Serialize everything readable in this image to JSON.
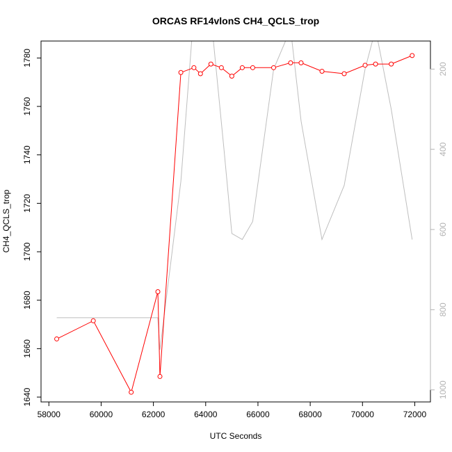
{
  "chart_data": {
    "type": "line",
    "title": "ORCAS RF14vlonS CH4_QCLS_trop",
    "xlabel": "UTC Seconds",
    "ylabel": "CH4_QCLS_trop",
    "xlim": [
      57700,
      72600
    ],
    "ylim": [
      1638,
      1787
    ],
    "xticks": [
      "58000",
      "60000",
      "62000",
      "64000",
      "66000",
      "68000",
      "70000",
      "72000"
    ],
    "yticks": [
      "1640",
      "1660",
      "1680",
      "1700",
      "1720",
      "1740",
      "1760",
      "1780"
    ],
    "y2lim": [
      1030,
      130
    ],
    "y2ticks": [
      "200",
      "400",
      "600",
      "800",
      "1000"
    ],
    "grid": false,
    "series": [
      {
        "color": "#ff0000",
        "marker": "open-circle",
        "axis": "left",
        "x": [
          58300,
          59700,
          61150,
          62170,
          62250,
          63050,
          63550,
          63800,
          64200,
          64600,
          65000,
          65400,
          65800,
          66600,
          67250,
          67650,
          68450,
          69300,
          70100,
          70500,
          71100,
          71900
        ],
        "y": [
          1664,
          1671.5,
          1642,
          1683.5,
          1648.5,
          1774,
          1776,
          1773.5,
          1777.5,
          1776,
          1772.5,
          1776,
          1776,
          1776,
          1778,
          1778,
          1774.5,
          1773.5,
          1777,
          1777.5,
          1777.5,
          1781
        ]
      },
      {
        "color": "#bebebe",
        "marker": "none",
        "axis": "right",
        "x": [
          58300,
          62170,
          62250,
          63050,
          63500,
          64250,
          64700,
          65000,
          65400,
          65800,
          66600,
          67250,
          67650,
          68450,
          69300,
          70100,
          70500,
          71100,
          71900
        ],
        "y": [
          820,
          820,
          900,
          480,
          100,
          100,
          400,
          610,
          625,
          580,
          200,
          100,
          330,
          625,
          490,
          200,
          100,
          300,
          625
        ]
      }
    ]
  }
}
